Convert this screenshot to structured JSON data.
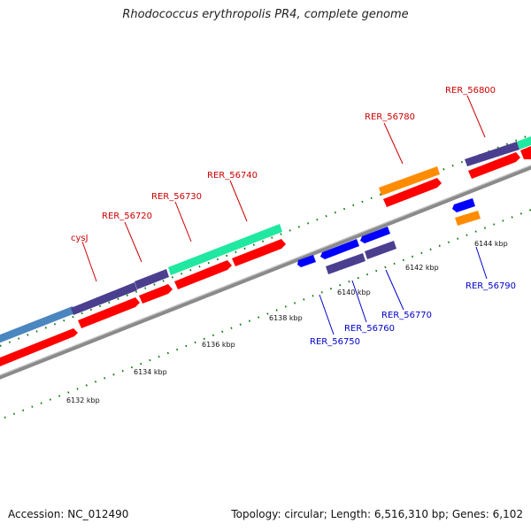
{
  "title": "Rhodococcus erythropolis PR4, complete genome",
  "footer": {
    "accession": "Accession: NC_012490",
    "summary": "Topology: circular; Length: 6,516,310 bp; Genes: 6,102"
  },
  "colors": {
    "backbone": "#8a8a8a",
    "cds": "#ff0000",
    "forward_label": "#cc0000",
    "reverse_label": "#0000cc",
    "tick": "#007700",
    "gene_purple": "#4a3f8f",
    "gene_teal": "#20e8a0",
    "gene_blue": "#4a86c0",
    "gene_orange": "#ff8c00",
    "gene_reverse_blue": "#0000ff"
  },
  "tick_labels": [
    "6132 kbp",
    "6134 kbp",
    "6136 kbp",
    "6138 kbp",
    "6140 kbp",
    "6142 kbp",
    "6144 kbp"
  ],
  "forward_labels": [
    "cysJ",
    "RER_56720",
    "RER_56730",
    "RER_56740",
    "RER_56780",
    "RER_56800"
  ],
  "reverse_labels": [
    "RER_56750",
    "RER_56760",
    "RER_56770",
    "RER_56790"
  ]
}
